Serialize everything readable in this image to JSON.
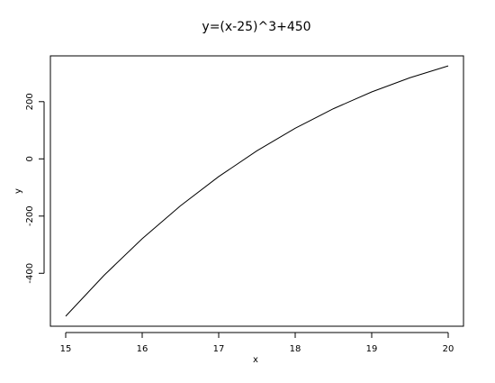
{
  "chart_data": {
    "type": "line",
    "title": "y=(x-25)^3+450",
    "x_label": "x",
    "y_label": "y",
    "x": [
      15,
      15.5,
      16,
      16.5,
      17,
      17.5,
      18,
      18.5,
      19,
      19.5,
      20
    ],
    "series": [
      {
        "color": "#000000",
        "values": [
          -550,
          -407.375,
          -279,
          -164.125,
          -62,
          28.125,
          107,
          175.375,
          234,
          283.625,
          325
        ]
      }
    ],
    "xlim": [
      14.8,
      20.2
    ],
    "ylim": [
      -585,
      360
    ],
    "xticks": [
      15,
      16,
      17,
      18,
      19,
      20
    ],
    "yticks": [
      -400,
      -200,
      0,
      200
    ]
  }
}
